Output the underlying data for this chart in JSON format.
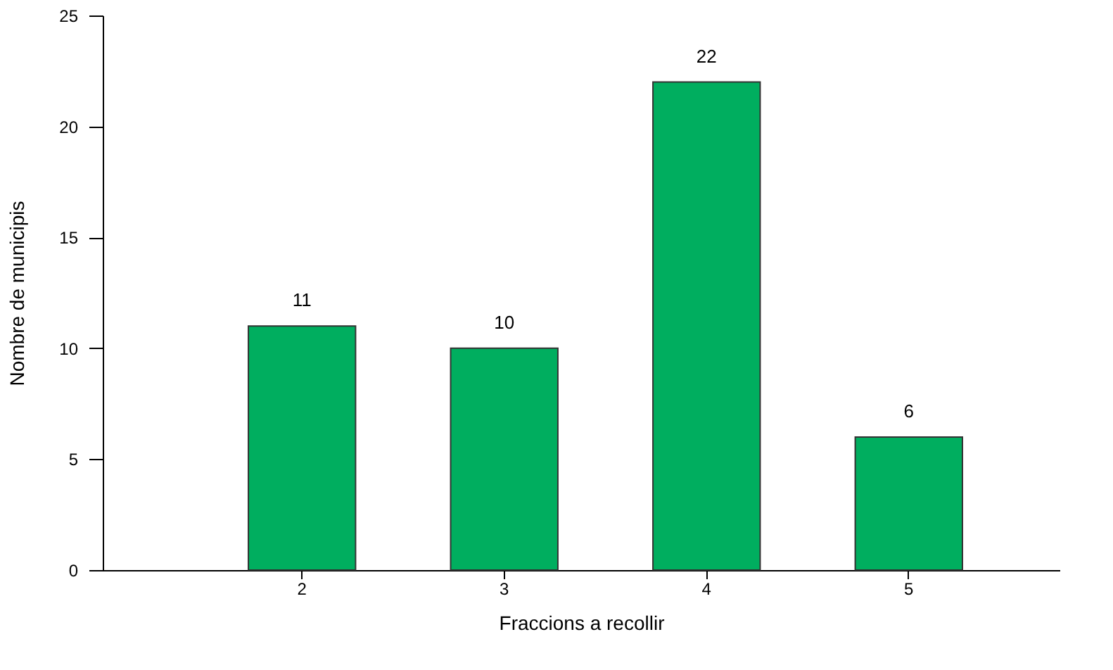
{
  "chart_data": {
    "type": "bar",
    "xlabel": "Fraccions a recollir",
    "ylabel": "Nombre de municipis",
    "categories": [
      "2",
      "3",
      "4",
      "5"
    ],
    "values": [
      11,
      10,
      22,
      6
    ],
    "color": "#00ae5f",
    "ylim": [
      0,
      25
    ],
    "yticks": [
      0,
      5,
      10,
      15,
      20,
      25
    ],
    "grid": false,
    "data_labels": true
  }
}
